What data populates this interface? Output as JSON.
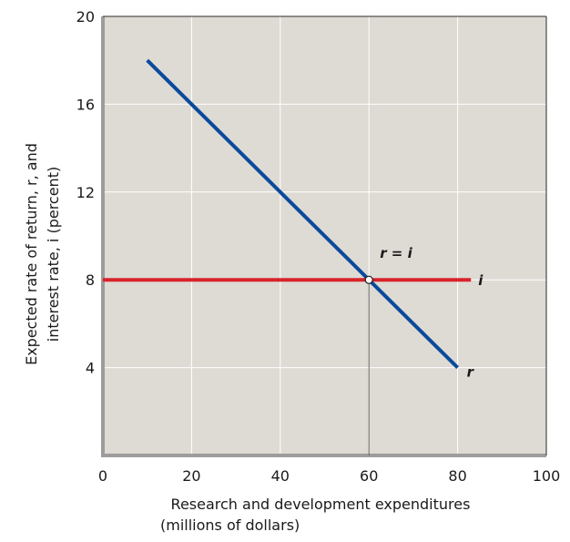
{
  "chart_data": {
    "type": "line",
    "xlabel_lines": [
      "Research and development expenditures",
      "(millions of dollars)"
    ],
    "ylabel_lines": [
      "Expected rate of return, r, and",
      "interest rate, i (percent)"
    ],
    "xlim": [
      0,
      100
    ],
    "ylim": [
      0,
      20
    ],
    "x_ticks": [
      "0",
      "20",
      "40",
      "60",
      "80",
      "100"
    ],
    "y_ticks": [
      "4",
      "8",
      "12",
      "16",
      "20"
    ],
    "grid": true,
    "colors": {
      "background": "#dedad4",
      "grid": "#ffffff",
      "r": "#0a4a9c",
      "i": "#d8232a",
      "axes": "#9c9c9c"
    },
    "series": [
      {
        "name": "r",
        "x": [
          10,
          20,
          30,
          40,
          50,
          60,
          70,
          80
        ],
        "y": [
          18,
          16,
          14,
          12,
          10,
          8,
          6,
          4
        ]
      },
      {
        "name": "i",
        "x": [
          0,
          83
        ],
        "y": [
          8,
          8
        ]
      }
    ],
    "annotation": {
      "text": "r = i",
      "x": 60,
      "y": 8
    }
  }
}
